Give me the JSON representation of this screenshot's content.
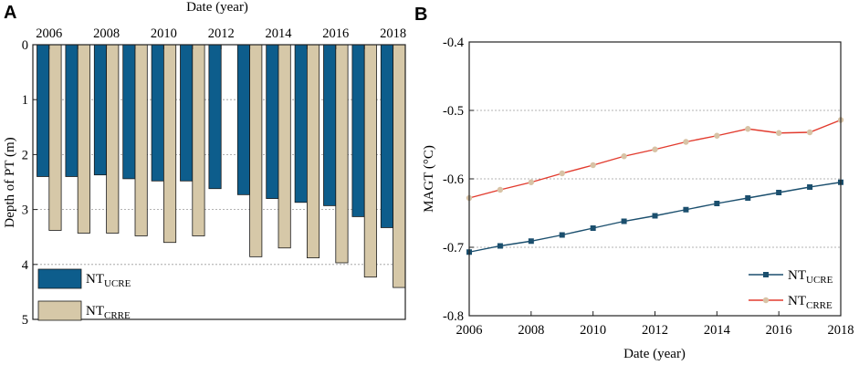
{
  "panel_a": {
    "panel_label": "A",
    "x_axis_title": "Date (year)",
    "y_axis_title": "Depth of PT (m)",
    "x_tick_labels": [
      "2006",
      "2008",
      "2010",
      "2012",
      "2014",
      "2016",
      "2018"
    ],
    "y_tick_labels": [
      "0",
      "1",
      "2",
      "3",
      "4",
      "5"
    ],
    "legend": [
      {
        "prefix": "NT",
        "sub": "UCRE",
        "color": "#0d5d8c"
      },
      {
        "prefix": "NT",
        "sub": "CRRE",
        "color": "#d6c8a8"
      }
    ]
  },
  "panel_b": {
    "panel_label": "B",
    "x_axis_title": "Date (year)",
    "y_axis_title": "MAGT (°C)",
    "x_tick_labels": [
      "2006",
      "2008",
      "2010",
      "2012",
      "2014",
      "2016",
      "2018"
    ],
    "y_tick_labels": [
      "-0.4",
      "-0.5",
      "-0.6",
      "-0.7",
      "-0.8"
    ],
    "legend": [
      {
        "prefix": "NT",
        "sub": "UCRE",
        "color": "#1b4f6e"
      },
      {
        "prefix": "NT",
        "sub": "CRRE",
        "color": "#e23b2e"
      }
    ]
  },
  "chart_data": [
    {
      "type": "bar",
      "title": "",
      "xlabel": "Date (year)",
      "ylabel": "Depth of PT (m)",
      "ylim": [
        0,
        5
      ],
      "y_inverted": true,
      "grid": "horizontal dotted",
      "categories": [
        2006,
        2007,
        2008,
        2009,
        2010,
        2011,
        2012,
        2013,
        2014,
        2015,
        2016,
        2017,
        2018
      ],
      "series": [
        {
          "name": "NT_UCRE",
          "color": "#0d5d8c",
          "values": [
            2.4,
            2.4,
            2.37,
            2.44,
            2.48,
            2.48,
            2.62,
            2.73,
            2.8,
            2.87,
            2.93,
            3.13,
            3.33
          ]
        },
        {
          "name": "NT_CRRE",
          "color": "#d6c8a8",
          "values": [
            3.38,
            3.43,
            3.43,
            3.48,
            3.6,
            3.48,
            null,
            3.86,
            3.7,
            3.88,
            3.97,
            4.23,
            4.42
          ]
        }
      ]
    },
    {
      "type": "line",
      "title": "",
      "xlabel": "Date (year)",
      "ylabel": "MAGT (°C)",
      "xlim": [
        2006,
        2018
      ],
      "ylim": [
        -0.8,
        -0.4
      ],
      "grid": "horizontal dotted",
      "legend_position": "bottom-right",
      "x": [
        2006,
        2007,
        2008,
        2009,
        2010,
        2011,
        2012,
        2013,
        2014,
        2015,
        2016,
        2017,
        2018
      ],
      "series": [
        {
          "name": "NT_UCRE",
          "color": "#1b4f6e",
          "marker": "square",
          "values": [
            -0.707,
            -0.698,
            -0.691,
            -0.682,
            -0.672,
            -0.662,
            -0.654,
            -0.645,
            -0.636,
            -0.628,
            -0.62,
            -0.612,
            -0.605
          ]
        },
        {
          "name": "NT_CRRE",
          "color": "#e23b2e",
          "marker": "circle",
          "marker_color": "#d8c3a6",
          "values": [
            -0.628,
            -0.616,
            -0.605,
            -0.592,
            -0.58,
            -0.567,
            -0.557,
            -0.546,
            -0.537,
            -0.527,
            -0.533,
            -0.532,
            -0.514
          ]
        }
      ]
    }
  ]
}
